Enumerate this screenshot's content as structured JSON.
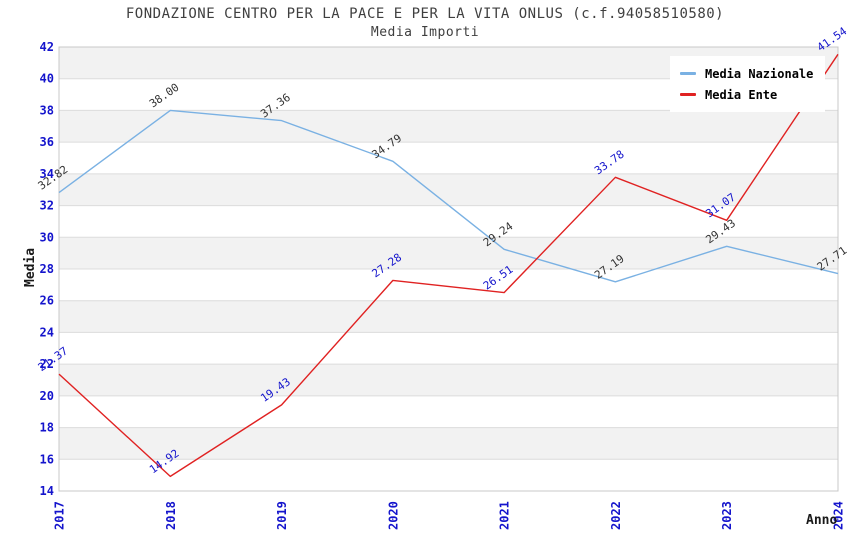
{
  "title": "FONDAZIONE CENTRO PER LA PACE E PER LA VITA ONLUS (c.f.94058510580)",
  "subtitle": "Media Importi",
  "axes": {
    "y_title": "Media",
    "x_title": "Anno"
  },
  "legend": {
    "items": [
      {
        "label": "Media Nazionale",
        "color": "#7ab1e3"
      },
      {
        "label": "Media Ente",
        "color": "#e02222"
      }
    ]
  },
  "colors": {
    "series_blue": "#7ab1e3",
    "series_red": "#e02222",
    "tick_label_blue": "#1414cc",
    "point_label_dark": "#333333",
    "point_label_blue": "#1414cc",
    "title_gray": "#3f3f3f",
    "band_gray": "#f2f2f2",
    "grid_gray": "#dcdcdc",
    "border_gray": "#c8c8c8",
    "axis_title_black": "#1a1a1a"
  },
  "chart_data": {
    "type": "line",
    "title": "FONDAZIONE CENTRO PER LA PACE E PER LA VITA ONLUS (c.f.94058510580)",
    "subtitle": "Media Importi",
    "xlabel": "Anno",
    "ylabel": "Media",
    "x": [
      2017,
      2018,
      2019,
      2020,
      2021,
      2022,
      2023,
      2024
    ],
    "series": [
      {
        "name": "Media Nazionale",
        "color": "#7ab1e3",
        "label_color": "#333333",
        "values": [
          32.82,
          38.0,
          37.36,
          34.79,
          29.24,
          27.19,
          29.43,
          27.71
        ]
      },
      {
        "name": "Media Ente",
        "color": "#e02222",
        "label_color": "#1414cc",
        "values": [
          21.37,
          14.92,
          19.43,
          27.28,
          26.51,
          33.78,
          31.07,
          41.54
        ]
      }
    ],
    "ylim": [
      14,
      42
    ],
    "ytick_step": 2,
    "grid": true,
    "plot_bands_alternating": true,
    "legend_position": "top-right",
    "point_labels": "shown, rotated",
    "value_format": "0.00"
  }
}
